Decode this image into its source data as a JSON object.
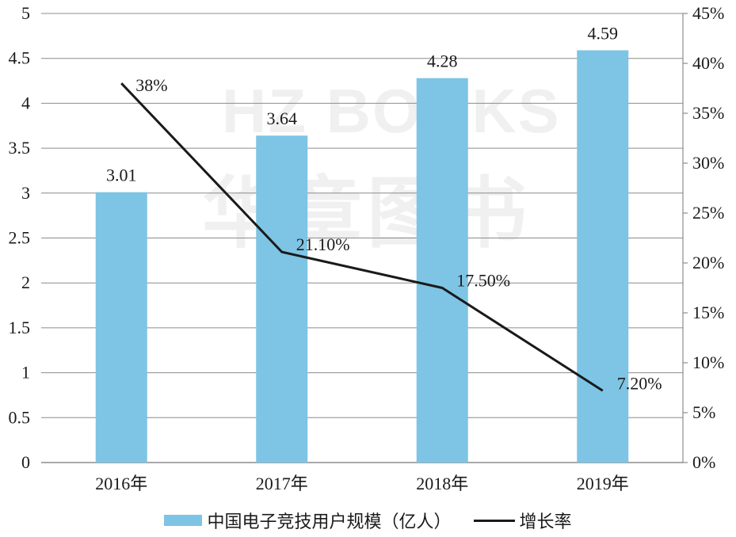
{
  "watermark": {
    "en": "HZ BOOKS",
    "cn": "华章图书"
  },
  "legend": {
    "bar_label": "中国电子竞技用户规模（亿人）",
    "line_label": "增长率"
  },
  "colors": {
    "bar": "#7ec4e4",
    "line": "#1a1a1a",
    "axis": "#8c8c8c"
  },
  "chart_data": {
    "type": "bar",
    "categories": [
      "2016年",
      "2017年",
      "2018年",
      "2019年"
    ],
    "series": [
      {
        "name": "中国电子竞技用户规模（亿人）",
        "type": "bar",
        "axis": "left",
        "values": [
          3.01,
          3.64,
          4.28,
          4.59
        ],
        "labels": [
          "3.01",
          "3.64",
          "4.28",
          "4.59"
        ]
      },
      {
        "name": "增长率",
        "type": "line",
        "axis": "right",
        "values": [
          38,
          21.1,
          17.5,
          7.2
        ],
        "labels": [
          "38%",
          "21.10%",
          "17.50%",
          "7.20%"
        ]
      }
    ],
    "y_left": {
      "range": [
        0,
        5
      ],
      "ticks": [
        "0",
        "0.5",
        "1",
        "1.5",
        "2",
        "2.5",
        "3",
        "3.5",
        "4",
        "4.5",
        "5"
      ]
    },
    "y_right": {
      "range": [
        0,
        45
      ],
      "ticks": [
        "0%",
        "5%",
        "10%",
        "15%",
        "20%",
        "25%",
        "30%",
        "35%",
        "40%",
        "45%"
      ]
    },
    "grid": true,
    "legend_position": "bottom"
  }
}
